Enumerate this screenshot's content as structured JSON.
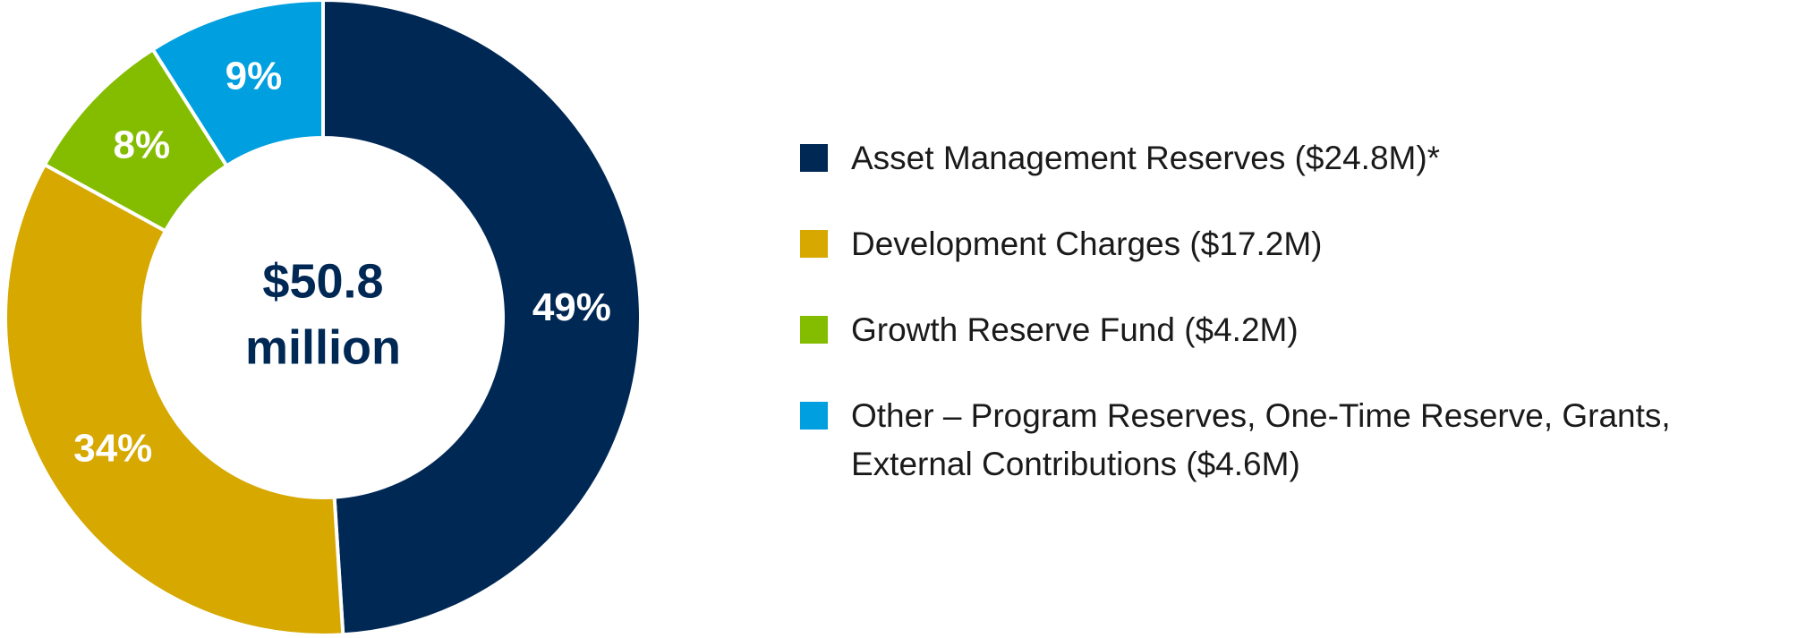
{
  "chart_data": {
    "type": "pie",
    "donut": true,
    "categories": [
      "Asset Management Reserves ($24.8M)*",
      "Development Charges ($17.2M)",
      "Growth Reserve Fund ($4.2M)",
      "Other – Program Reserves, One-Time Reserve, Grants, External Contributions ($4.6M)"
    ],
    "values": [
      49,
      34,
      8,
      9
    ],
    "value_labels": [
      "49%",
      "34%",
      "8%",
      "9%"
    ],
    "colors": [
      "#002855",
      "#d6a800",
      "#84bd00",
      "#009fdf"
    ],
    "center_label": [
      "$50.8",
      "million"
    ],
    "legend": "right"
  }
}
